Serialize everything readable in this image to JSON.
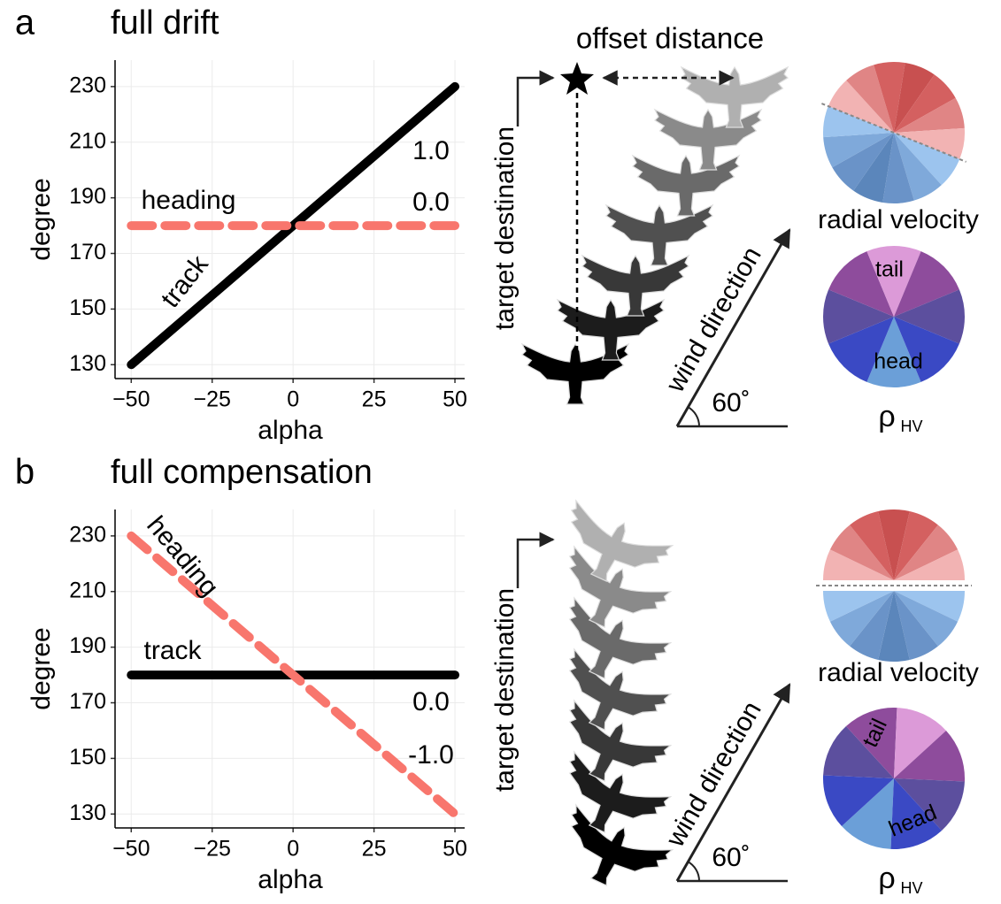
{
  "chart_data": [
    {
      "type": "line",
      "panel": "a",
      "title": "full drift",
      "x_label": "alpha",
      "y_label": "degree",
      "x": [
        -50,
        50
      ],
      "series": [
        {
          "name": "track",
          "color": "#000000",
          "dashed": false,
          "values": [
            130,
            230
          ]
        },
        {
          "name": "heading",
          "color": "#f8766d",
          "dashed": true,
          "values": [
            180,
            180
          ]
        }
      ],
      "annotations": [
        "1.0",
        "0.0"
      ],
      "xlim": [
        -55,
        53
      ],
      "ylim": [
        125,
        239.5
      ],
      "xticks": [
        {
          "value": -50,
          "label": "−50"
        },
        {
          "value": -25,
          "label": "−25"
        },
        0,
        25,
        50
      ],
      "yticks": [
        130,
        150,
        170,
        190,
        210,
        230
      ],
      "grid": true
    },
    {
      "type": "line",
      "panel": "b",
      "title": "full compensation",
      "x_label": "alpha",
      "y_label": "degree",
      "x": [
        -50,
        50
      ],
      "series": [
        {
          "name": "track",
          "color": "#000000",
          "dashed": false,
          "values": [
            180,
            180
          ]
        },
        {
          "name": "heading",
          "color": "#f8766d",
          "dashed": true,
          "values": [
            230,
            130
          ]
        }
      ],
      "annotations": [
        "0.0",
        "-1.0"
      ],
      "xlim": [
        -55,
        53
      ],
      "ylim": [
        125,
        239.5
      ],
      "xticks": [
        {
          "value": -50,
          "label": "−50"
        },
        {
          "value": -25,
          "label": "−25"
        },
        0,
        25,
        50
      ],
      "yticks": [
        130,
        150,
        170,
        190,
        210,
        230
      ],
      "grid": true
    }
  ],
  "diagrams": [
    {
      "offset_label": "offset distance",
      "target_label": "target destination",
      "wind_label": "wind direction",
      "angle_label": "60˚",
      "velocity_label": "radial velocity",
      "tail_label": "tail",
      "head_label": "head",
      "rho": "ρ",
      "rho_sub": "HV"
    },
    {
      "target_label": "target destination",
      "wind_label": "wind direction",
      "angle_label": "60˚",
      "velocity_label": "radial velocity",
      "tail_label": "tail",
      "head_label": "head",
      "rho": "ρ",
      "rho_sub": "HV"
    }
  ]
}
